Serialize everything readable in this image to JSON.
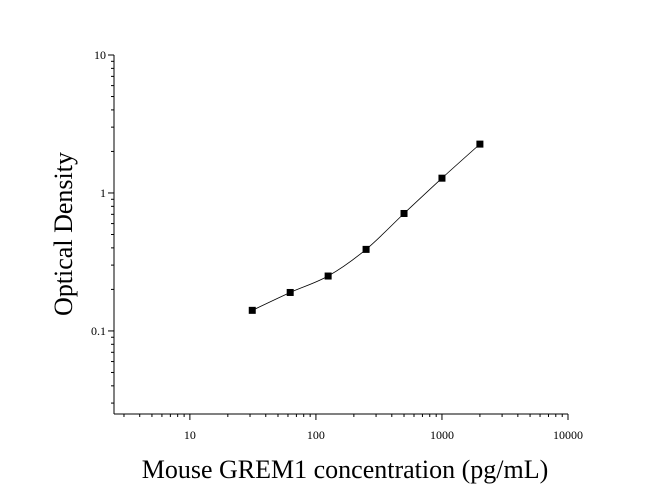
{
  "chart_data": {
    "type": "scatter",
    "xlabel": "Mouse GREM1 concentration (pg/mL)",
    "ylabel": "Optical Density",
    "xscale": "log",
    "yscale": "log",
    "xlim": [
      2.5,
      10000
    ],
    "ylim": [
      0.025,
      10
    ],
    "x_tick_labels": [
      "10",
      "100",
      "1000",
      "10000"
    ],
    "y_tick_labels": [
      "0.1",
      "1",
      "10"
    ],
    "grid": false,
    "legend": "none",
    "marker": "square",
    "series": [
      {
        "x": [
          31.25,
          62.5,
          125,
          250,
          500,
          1000,
          2000
        ],
        "y": [
          0.141,
          0.19,
          0.25,
          0.39,
          0.71,
          1.28,
          2.26
        ]
      }
    ],
    "fit_curve": true,
    "color": "#000000"
  }
}
